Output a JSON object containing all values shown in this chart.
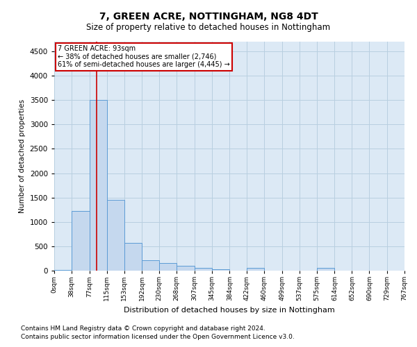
{
  "title": "7, GREEN ACRE, NOTTINGHAM, NG8 4DT",
  "subtitle": "Size of property relative to detached houses in Nottingham",
  "xlabel": "Distribution of detached houses by size in Nottingham",
  "ylabel": "Number of detached properties",
  "footnote1": "Contains HM Land Registry data © Crown copyright and database right 2024.",
  "footnote2": "Contains public sector information licensed under the Open Government Licence v3.0.",
  "bar_color": "#c5d8ee",
  "bar_edge_color": "#5b9bd5",
  "grid_color": "#b8cfe0",
  "bg_color": "#dce9f5",
  "annotation_box_color": "#cc0000",
  "vline_color": "#cc0000",
  "property_size": 93,
  "bin_edges": [
    0,
    38,
    77,
    115,
    153,
    192,
    230,
    268,
    307,
    345,
    384,
    422,
    460,
    499,
    537,
    575,
    614,
    652,
    690,
    729,
    767
  ],
  "bin_labels": [
    "0sqm",
    "38sqm",
    "77sqm",
    "115sqm",
    "153sqm",
    "192sqm",
    "230sqm",
    "268sqm",
    "307sqm",
    "345sqm",
    "384sqm",
    "422sqm",
    "460sqm",
    "499sqm",
    "537sqm",
    "575sqm",
    "614sqm",
    "652sqm",
    "690sqm",
    "729sqm",
    "767sqm"
  ],
  "bar_heights": [
    10,
    1220,
    3500,
    1450,
    570,
    210,
    160,
    100,
    60,
    25,
    5,
    55,
    5,
    0,
    0,
    50,
    0,
    0,
    0,
    0
  ],
  "ylim": [
    0,
    4700
  ],
  "yticks": [
    0,
    500,
    1000,
    1500,
    2000,
    2500,
    3000,
    3500,
    4000,
    4500
  ],
  "annotation_line1": "7 GREEN ACRE: 93sqm",
  "annotation_line2": "← 38% of detached houses are smaller (2,746)",
  "annotation_line3": "61% of semi-detached houses are larger (4,445) →",
  "title_fontsize": 10,
  "subtitle_fontsize": 8.5,
  "footnote_fontsize": 6.5,
  "ylabel_fontsize": 7.5,
  "xlabel_fontsize": 8
}
